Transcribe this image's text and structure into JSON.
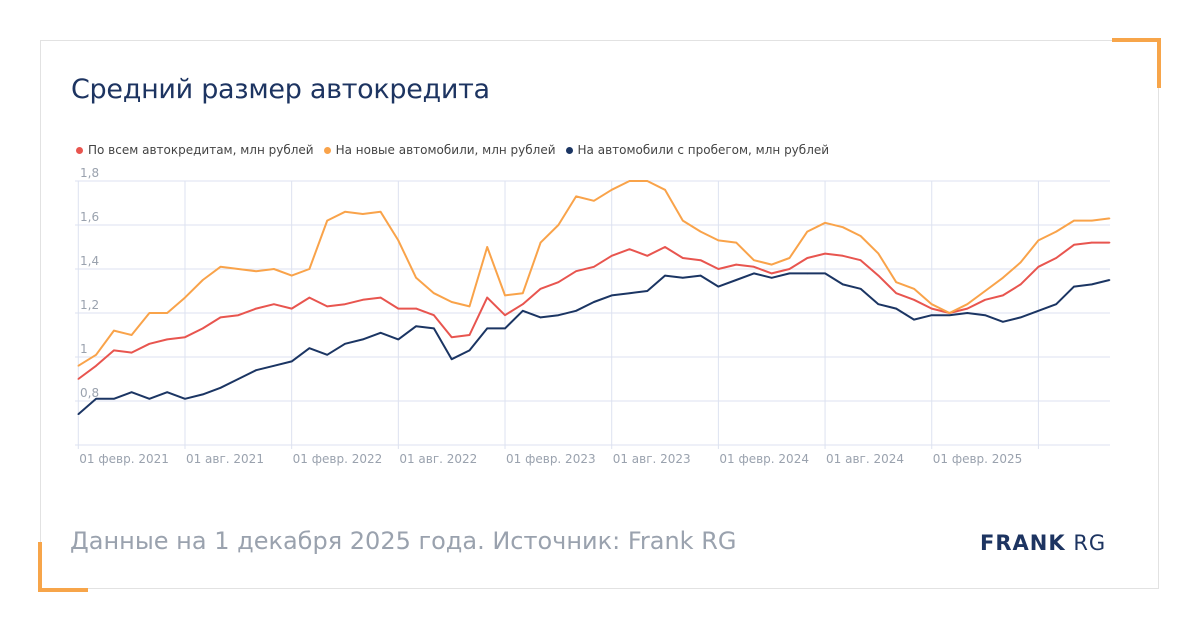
{
  "chart_data": {
    "type": "line",
    "title": "Средний размер автокредита",
    "xlabel": "",
    "ylabel": "",
    "ylim": [
      0.6,
      1.8
    ],
    "yticks": [
      0.8,
      1,
      1.2,
      1.4,
      1.6,
      1.8
    ],
    "ytick_labels": [
      "0,8",
      "1",
      "1,2",
      "1,4",
      "1,6",
      "1,8"
    ],
    "grid": true,
    "legend_position": "top-left",
    "x_start": "2021-02",
    "x_count": 59,
    "x_frequency": "monthly",
    "xtick_labels": [
      {
        "index": 0,
        "label": "01 февр. 2021"
      },
      {
        "index": 6,
        "label": "01 авг. 2021"
      },
      {
        "index": 12,
        "label": "01 февр. 2022"
      },
      {
        "index": 18,
        "label": "01 авг. 2022"
      },
      {
        "index": 24,
        "label": "01 февр. 2023"
      },
      {
        "index": 30,
        "label": "01 авг. 2023"
      },
      {
        "index": 36,
        "label": "01 февр. 2024"
      },
      {
        "index": 42,
        "label": "01 авг. 2024"
      },
      {
        "index": 48,
        "label": "01 февр. 2025"
      },
      {
        "index": 54,
        "label": ""
      }
    ],
    "series": [
      {
        "name": "По всем автокредитам, млн рублей",
        "color": "#e8554f",
        "values": [
          0.9,
          0.96,
          1.03,
          1.02,
          1.06,
          1.08,
          1.09,
          1.13,
          1.18,
          1.19,
          1.22,
          1.24,
          1.22,
          1.27,
          1.23,
          1.24,
          1.26,
          1.27,
          1.22,
          1.22,
          1.19,
          1.09,
          1.1,
          1.27,
          1.19,
          1.24,
          1.31,
          1.34,
          1.39,
          1.41,
          1.46,
          1.49,
          1.46,
          1.5,
          1.45,
          1.44,
          1.4,
          1.42,
          1.41,
          1.38,
          1.4,
          1.45,
          1.47,
          1.46,
          1.44,
          1.37,
          1.29,
          1.26,
          1.22,
          1.2,
          1.22,
          1.26,
          1.28,
          1.33,
          1.41,
          1.45,
          1.51,
          1.52,
          1.52
        ]
      },
      {
        "name": "На новые автомобили, млн рублей",
        "color": "#f9a34a",
        "values": [
          0.96,
          1.01,
          1.12,
          1.1,
          1.2,
          1.2,
          1.27,
          1.35,
          1.41,
          1.4,
          1.39,
          1.4,
          1.37,
          1.4,
          1.62,
          1.66,
          1.65,
          1.66,
          1.53,
          1.36,
          1.29,
          1.25,
          1.23,
          1.5,
          1.28,
          1.29,
          1.52,
          1.6,
          1.73,
          1.71,
          1.76,
          1.8,
          1.8,
          1.76,
          1.62,
          1.57,
          1.53,
          1.52,
          1.44,
          1.42,
          1.45,
          1.57,
          1.61,
          1.59,
          1.55,
          1.47,
          1.34,
          1.31,
          1.24,
          1.2,
          1.24,
          1.3,
          1.36,
          1.43,
          1.53,
          1.57,
          1.62,
          1.62,
          1.63
        ]
      },
      {
        "name": "На автомобили с пробегом, млн рублей",
        "color": "#1b3563",
        "values": [
          0.74,
          0.81,
          0.81,
          0.84,
          0.81,
          0.84,
          0.81,
          0.83,
          0.86,
          0.9,
          0.94,
          0.96,
          0.98,
          1.04,
          1.01,
          1.06,
          1.08,
          1.11,
          1.08,
          1.14,
          1.13,
          0.99,
          1.03,
          1.13,
          1.13,
          1.21,
          1.18,
          1.19,
          1.21,
          1.25,
          1.28,
          1.29,
          1.3,
          1.37,
          1.36,
          1.37,
          1.32,
          1.35,
          1.38,
          1.36,
          1.38,
          1.38,
          1.38,
          1.33,
          1.31,
          1.24,
          1.22,
          1.17,
          1.19,
          1.19,
          1.2,
          1.19,
          1.16,
          1.18,
          1.21,
          1.24,
          1.32,
          1.33,
          1.35
        ]
      }
    ]
  },
  "footer": {
    "source_text": "Данные на 1 декабря 2025 года. Источник: Frank RG",
    "logo_bold": "FRANK",
    "logo_light": "RG"
  }
}
